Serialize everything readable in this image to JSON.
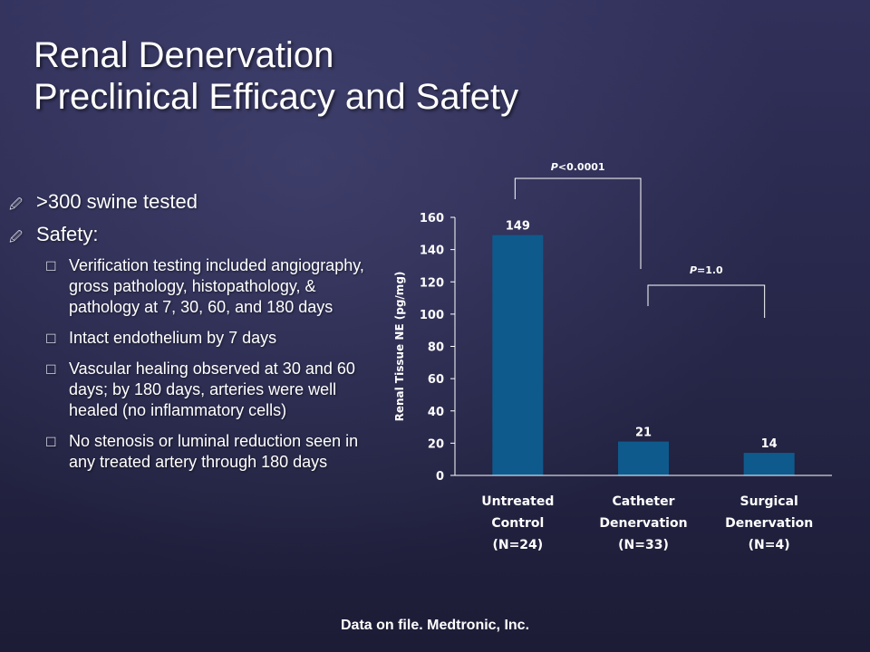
{
  "slide": {
    "title_line1": "Renal Denervation",
    "title_line2": "Preclinical Efficacy and Safety",
    "footer": "Data on file. Medtronic, Inc."
  },
  "bullets": [
    {
      "text": ">300 swine tested",
      "marker_icon": "pen-bullet-icon"
    },
    {
      "text": "Safety:",
      "marker_icon": "pen-bullet-icon"
    }
  ],
  "sub_bullets": [
    {
      "text": "Verification testing included angiography, gross pathology, histopathology, & pathology at 7, 30, 60, and 180 days",
      "marker_icon": "checkbox-bullet-icon"
    },
    {
      "text": "Intact endothelium by 7 days",
      "marker_icon": "checkbox-bullet-icon"
    },
    {
      "text": "Vascular healing observed at 30 and 60 days; by 180 days, arteries were well healed (no inflammatory cells)",
      "marker_icon": "checkbox-bullet-icon"
    },
    {
      "text": "No stenosis or luminal reduction seen in any treated artery through 180 days",
      "marker_icon": "checkbox-bullet-icon"
    }
  ],
  "colors": {
    "bar": "#0f5a8c",
    "background": "#2a2a4e",
    "axis": "#ffffff"
  },
  "chart_data": {
    "type": "bar",
    "ylabel": "Renal Tissue NE (pg/mg)",
    "ylim": [
      0,
      160
    ],
    "yticks": [
      "0",
      "20",
      "40",
      "60",
      "80",
      "100",
      "120",
      "140",
      "160"
    ],
    "categories": [
      {
        "lines": [
          "Untreated",
          "Control",
          "(N=24)"
        ],
        "value": 149,
        "label": "149"
      },
      {
        "lines": [
          "Catheter",
          "Denervation",
          "(N=33)"
        ],
        "value": 21,
        "label": "21"
      },
      {
        "lines": [
          "Surgical",
          "Denervation",
          "(N=4)"
        ],
        "value": 14,
        "label": "14"
      }
    ],
    "annotations": [
      {
        "p_symbol": "P",
        "rest": "<0.0001",
        "from": 0,
        "to": 1
      },
      {
        "p_symbol": "P",
        "rest": "=1.0",
        "from": 1,
        "to": 2
      }
    ],
    "grid": false,
    "legend": "none"
  }
}
